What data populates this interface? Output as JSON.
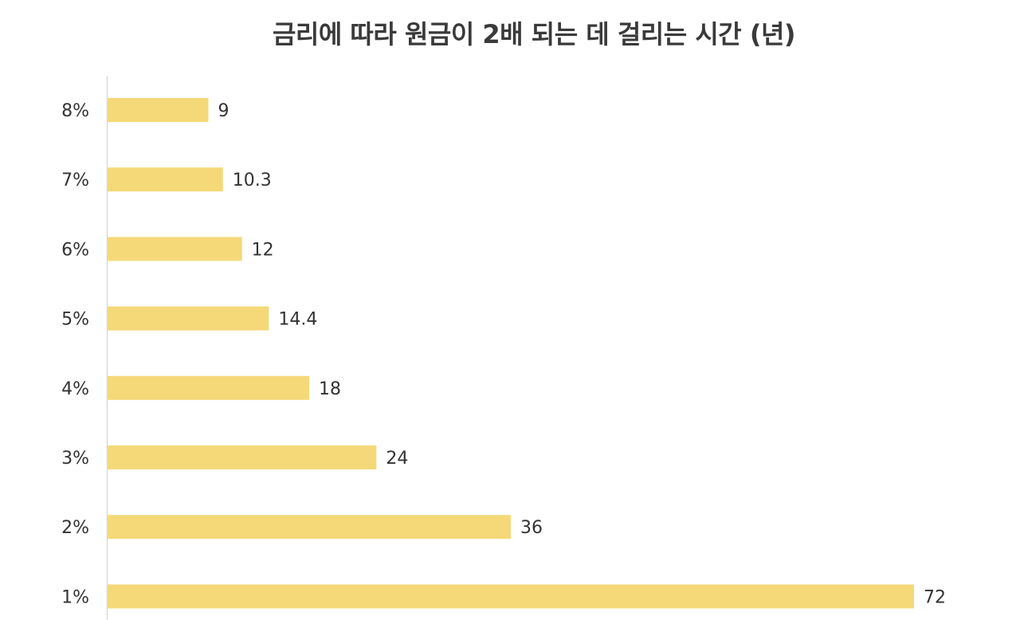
{
  "chart_data": {
    "type": "bar",
    "orientation": "horizontal",
    "title": "금리에 따라 원금이 2배 되는 데 걸리는 시간 (년)",
    "categories": [
      "8%",
      "7%",
      "6%",
      "5%",
      "4%",
      "3%",
      "2%",
      "1%"
    ],
    "values": [
      9,
      10.3,
      12,
      14.4,
      18,
      24,
      36,
      72
    ],
    "data_labels": [
      "9",
      "10.3",
      "12",
      "14.4",
      "18",
      "24",
      "36",
      "72"
    ],
    "xlim": [
      0,
      72
    ],
    "grid": false,
    "legend": "none",
    "bar_color": "#F5D978",
    "axis_color": "#D9D9D9"
  }
}
